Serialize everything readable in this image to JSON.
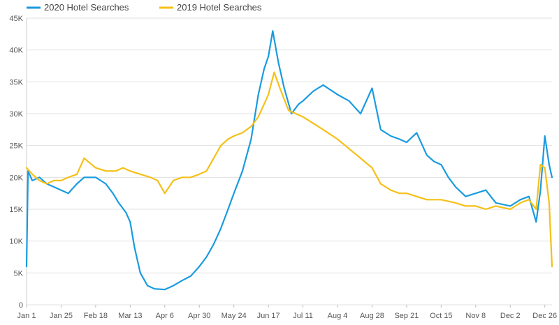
{
  "chart_data": {
    "type": "line",
    "title": "",
    "xlabel": "",
    "ylabel": "",
    "x_tick_labels": [
      "Jan 1",
      "Jan 25",
      "Feb 18",
      "Mar 13",
      "Apr 6",
      "Apr 30",
      "May 24",
      "Jun 17",
      "Jul 11",
      "Aug 4",
      "Aug 28",
      "Sep 21",
      "Oct 15",
      "Nov 8",
      "Dec 2",
      "Dec 26"
    ],
    "y_tick_labels": [
      "0",
      "5K",
      "10K",
      "15K",
      "20K",
      "25K",
      "30K",
      "35K",
      "40K",
      "45K"
    ],
    "ylim": [
      0,
      45000
    ],
    "grid": true,
    "legend_position": "top-left",
    "series": [
      {
        "name": "2020 Hotel Searches",
        "color": "#1a9be0",
        "points": [
          [
            "Jan 1",
            6000
          ],
          [
            "Jan 2",
            21000
          ],
          [
            "Jan 5",
            19500
          ],
          [
            "Jan 10",
            20000
          ],
          [
            "Jan 15",
            19000
          ],
          [
            "Jan 20",
            18500
          ],
          [
            "Jan 25",
            18000
          ],
          [
            "Jan 30",
            17500
          ],
          [
            "Feb 5",
            19000
          ],
          [
            "Feb 10",
            20000
          ],
          [
            "Feb 18",
            20000
          ],
          [
            "Feb 25",
            19000
          ],
          [
            "Mar 1",
            17500
          ],
          [
            "Mar 5",
            16000
          ],
          [
            "Mar 10",
            14500
          ],
          [
            "Mar 13",
            13000
          ],
          [
            "Mar 16",
            9000
          ],
          [
            "Mar 20",
            5000
          ],
          [
            "Mar 25",
            3000
          ],
          [
            "Mar 30",
            2500
          ],
          [
            "Apr 6",
            2400
          ],
          [
            "Apr 12",
            3000
          ],
          [
            "Apr 18",
            3800
          ],
          [
            "Apr 24",
            4500
          ],
          [
            "Apr 30",
            6000
          ],
          [
            "May 5",
            7500
          ],
          [
            "May 10",
            9500
          ],
          [
            "May 15",
            12000
          ],
          [
            "May 20",
            15000
          ],
          [
            "May 24",
            17500
          ],
          [
            "May 30",
            21000
          ],
          [
            "Jun 5",
            26000
          ],
          [
            "Jun 10",
            33000
          ],
          [
            "Jun 14",
            37000
          ],
          [
            "Jun 17",
            39000
          ],
          [
            "Jun 20",
            43000
          ],
          [
            "Jun 24",
            38000
          ],
          [
            "Jun 28",
            34000
          ],
          [
            "Jul 3",
            30000
          ],
          [
            "Jul 8",
            31500
          ],
          [
            "Jul 11",
            32000
          ],
          [
            "Jul 18",
            33500
          ],
          [
            "Jul 25",
            34500
          ],
          [
            "Aug 4",
            33000
          ],
          [
            "Aug 12",
            32000
          ],
          [
            "Aug 20",
            30000
          ],
          [
            "Aug 28",
            34000
          ],
          [
            "Sep 3",
            27500
          ],
          [
            "Sep 10",
            26500
          ],
          [
            "Sep 16",
            26000
          ],
          [
            "Sep 21",
            25500
          ],
          [
            "Sep 28",
            27000
          ],
          [
            "Oct 5",
            23500
          ],
          [
            "Oct 10",
            22500
          ],
          [
            "Oct 15",
            22000
          ],
          [
            "Oct 20",
            20000
          ],
          [
            "Oct 25",
            18500
          ],
          [
            "Nov 1",
            17000
          ],
          [
            "Nov 8",
            17500
          ],
          [
            "Nov 15",
            18000
          ],
          [
            "Nov 22",
            16000
          ],
          [
            "Dec 2",
            15500
          ],
          [
            "Dec 9",
            16500
          ],
          [
            "Dec 15",
            17000
          ],
          [
            "Dec 20",
            13000
          ],
          [
            "Dec 23",
            18000
          ],
          [
            "Dec 26",
            26500
          ],
          [
            "Dec 29",
            22000
          ],
          [
            "Dec 31",
            20000
          ]
        ]
      },
      {
        "name": "2019 Hotel Searches",
        "color": "#f5c018",
        "points": [
          [
            "Jan 1",
            21500
          ],
          [
            "Jan 5",
            20500
          ],
          [
            "Jan 10",
            19500
          ],
          [
            "Jan 15",
            19000
          ],
          [
            "Jan 20",
            19500
          ],
          [
            "Jan 25",
            19500
          ],
          [
            "Jan 30",
            20000
          ],
          [
            "Feb 5",
            20500
          ],
          [
            "Feb 10",
            23000
          ],
          [
            "Feb 18",
            21500
          ],
          [
            "Feb 25",
            21000
          ],
          [
            "Mar 3",
            21000
          ],
          [
            "Mar 8",
            21500
          ],
          [
            "Mar 13",
            21000
          ],
          [
            "Mar 20",
            20500
          ],
          [
            "Mar 27",
            20000
          ],
          [
            "Apr 1",
            19500
          ],
          [
            "Apr 6",
            17500
          ],
          [
            "Apr 12",
            19500
          ],
          [
            "Apr 18",
            20000
          ],
          [
            "Apr 24",
            20000
          ],
          [
            "Apr 30",
            20500
          ],
          [
            "May 5",
            21000
          ],
          [
            "May 10",
            23000
          ],
          [
            "May 15",
            25000
          ],
          [
            "May 20",
            26000
          ],
          [
            "May 24",
            26500
          ],
          [
            "May 30",
            27000
          ],
          [
            "Jun 5",
            28000
          ],
          [
            "Jun 10",
            29500
          ],
          [
            "Jun 17",
            33000
          ],
          [
            "Jun 21",
            36500
          ],
          [
            "Jun 25",
            34000
          ],
          [
            "Jul 1",
            30500
          ],
          [
            "Jul 6",
            30000
          ],
          [
            "Jul 11",
            29500
          ],
          [
            "Jul 18",
            28500
          ],
          [
            "Jul 25",
            27500
          ],
          [
            "Aug 4",
            26000
          ],
          [
            "Aug 12",
            24500
          ],
          [
            "Aug 20",
            23000
          ],
          [
            "Aug 28",
            21500
          ],
          [
            "Sep 3",
            19000
          ],
          [
            "Sep 10",
            18000
          ],
          [
            "Sep 16",
            17500
          ],
          [
            "Sep 21",
            17500
          ],
          [
            "Sep 28",
            17000
          ],
          [
            "Oct 5",
            16500
          ],
          [
            "Oct 15",
            16500
          ],
          [
            "Oct 25",
            16000
          ],
          [
            "Nov 1",
            15500
          ],
          [
            "Nov 8",
            15500
          ],
          [
            "Nov 15",
            15000
          ],
          [
            "Nov 22",
            15500
          ],
          [
            "Dec 2",
            15000
          ],
          [
            "Dec 9",
            16000
          ],
          [
            "Dec 15",
            16500
          ],
          [
            "Dec 20",
            15000
          ],
          [
            "Dec 23",
            22000
          ],
          [
            "Dec 26",
            21500
          ],
          [
            "Dec 29",
            16000
          ],
          [
            "Dec 31",
            6000
          ]
        ]
      }
    ]
  }
}
